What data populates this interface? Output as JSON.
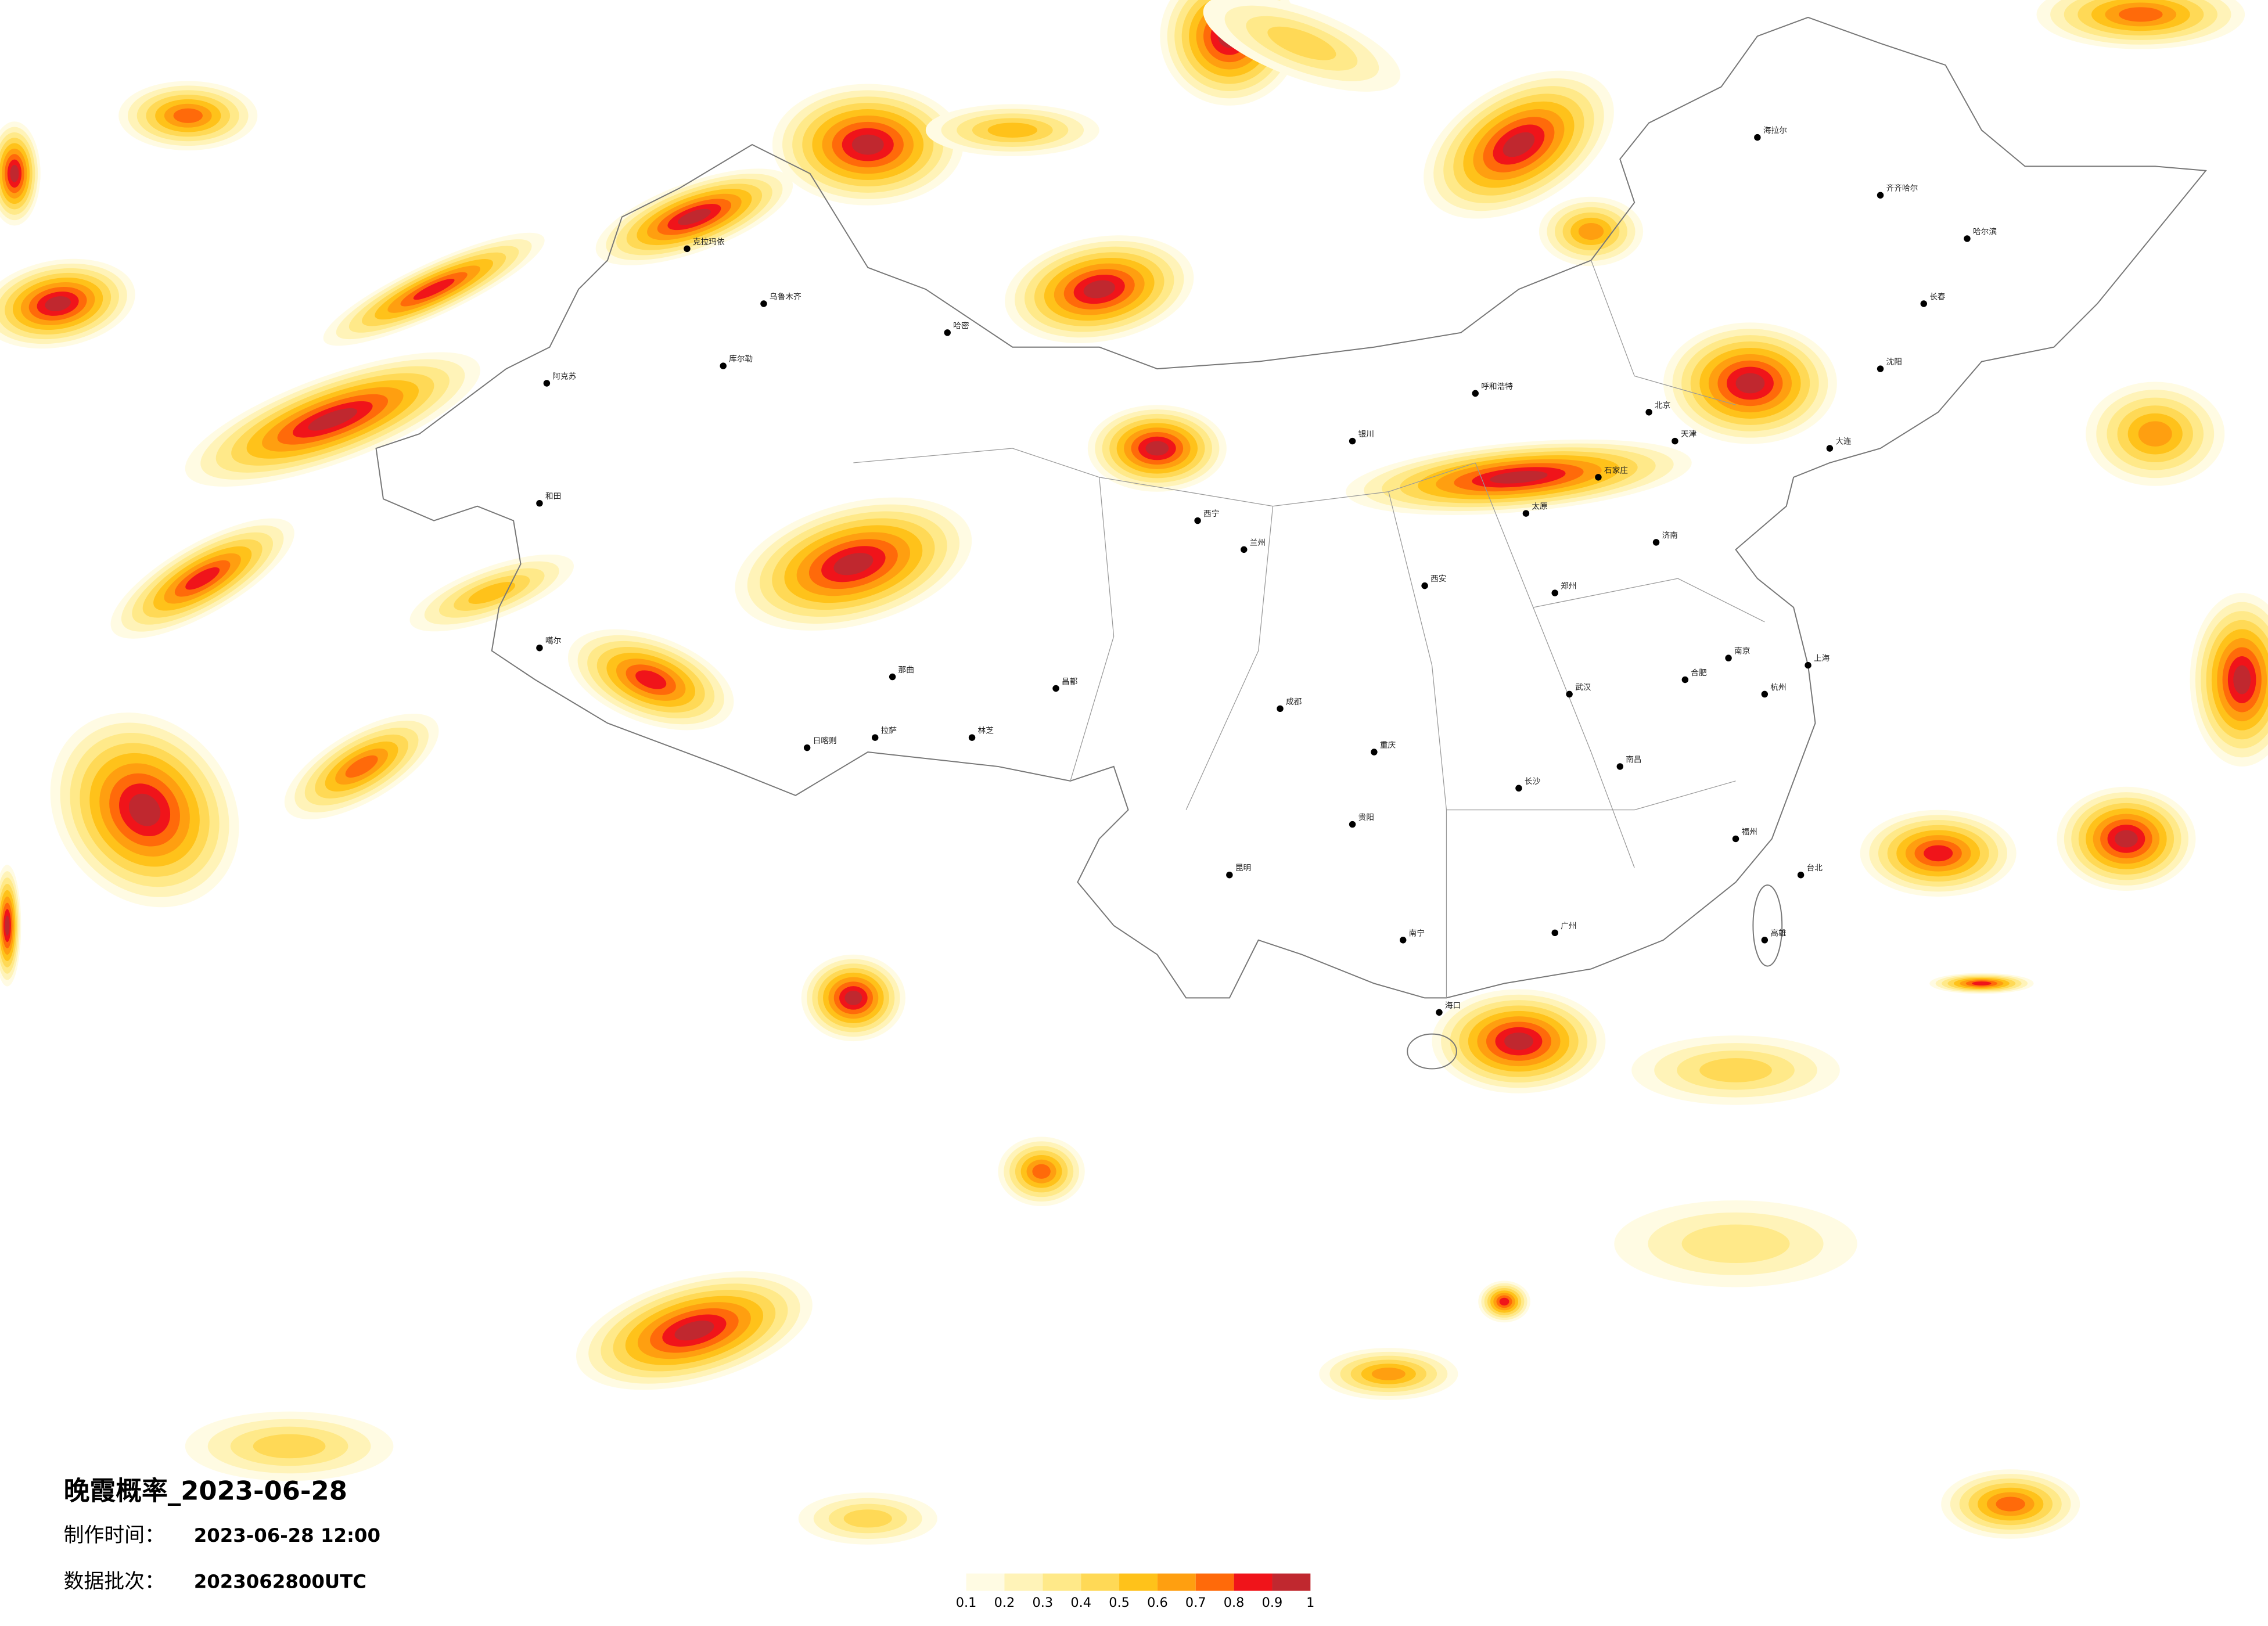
{
  "header": {
    "title": "晚霞概率_2023-06-28",
    "made_label": "制作时间：",
    "made_time": "2023-06-28 12:00",
    "batch_label": "数据批次：",
    "batch": "2023062800UTC"
  },
  "legend": {
    "ticks": [
      0.1,
      0.2,
      0.3,
      0.4,
      0.5,
      0.6,
      0.7,
      0.8,
      0.9,
      1
    ],
    "colors": [
      "#fffbe3",
      "#fff3b8",
      "#ffe989",
      "#ffd956",
      "#ffc21a",
      "#ff9f10",
      "#ff6a0a",
      "#f0141a",
      "#c0282f"
    ]
  },
  "cities": [
    "乌鲁木齐",
    "克拉玛依",
    "哈密",
    "库尔勒",
    "阿克苏",
    "和田",
    "噶尔",
    "拉萨",
    "日喀则",
    "林芝",
    "昌都",
    "那曲",
    "西宁",
    "兰州",
    "银川",
    "呼和浩特",
    "北京",
    "天津",
    "石家庄",
    "太原",
    "济南",
    "郑州",
    "西安",
    "成都",
    "重庆",
    "贵阳",
    "昆明",
    "南宁",
    "广州",
    "海口",
    "长沙",
    "武汉",
    "南昌",
    "福州",
    "杭州",
    "上海",
    "南京",
    "合肥",
    "哈尔滨",
    "长春",
    "沈阳",
    "大连",
    "齐齐哈尔",
    "海拉尔",
    "台北",
    "高雄"
  ]
}
